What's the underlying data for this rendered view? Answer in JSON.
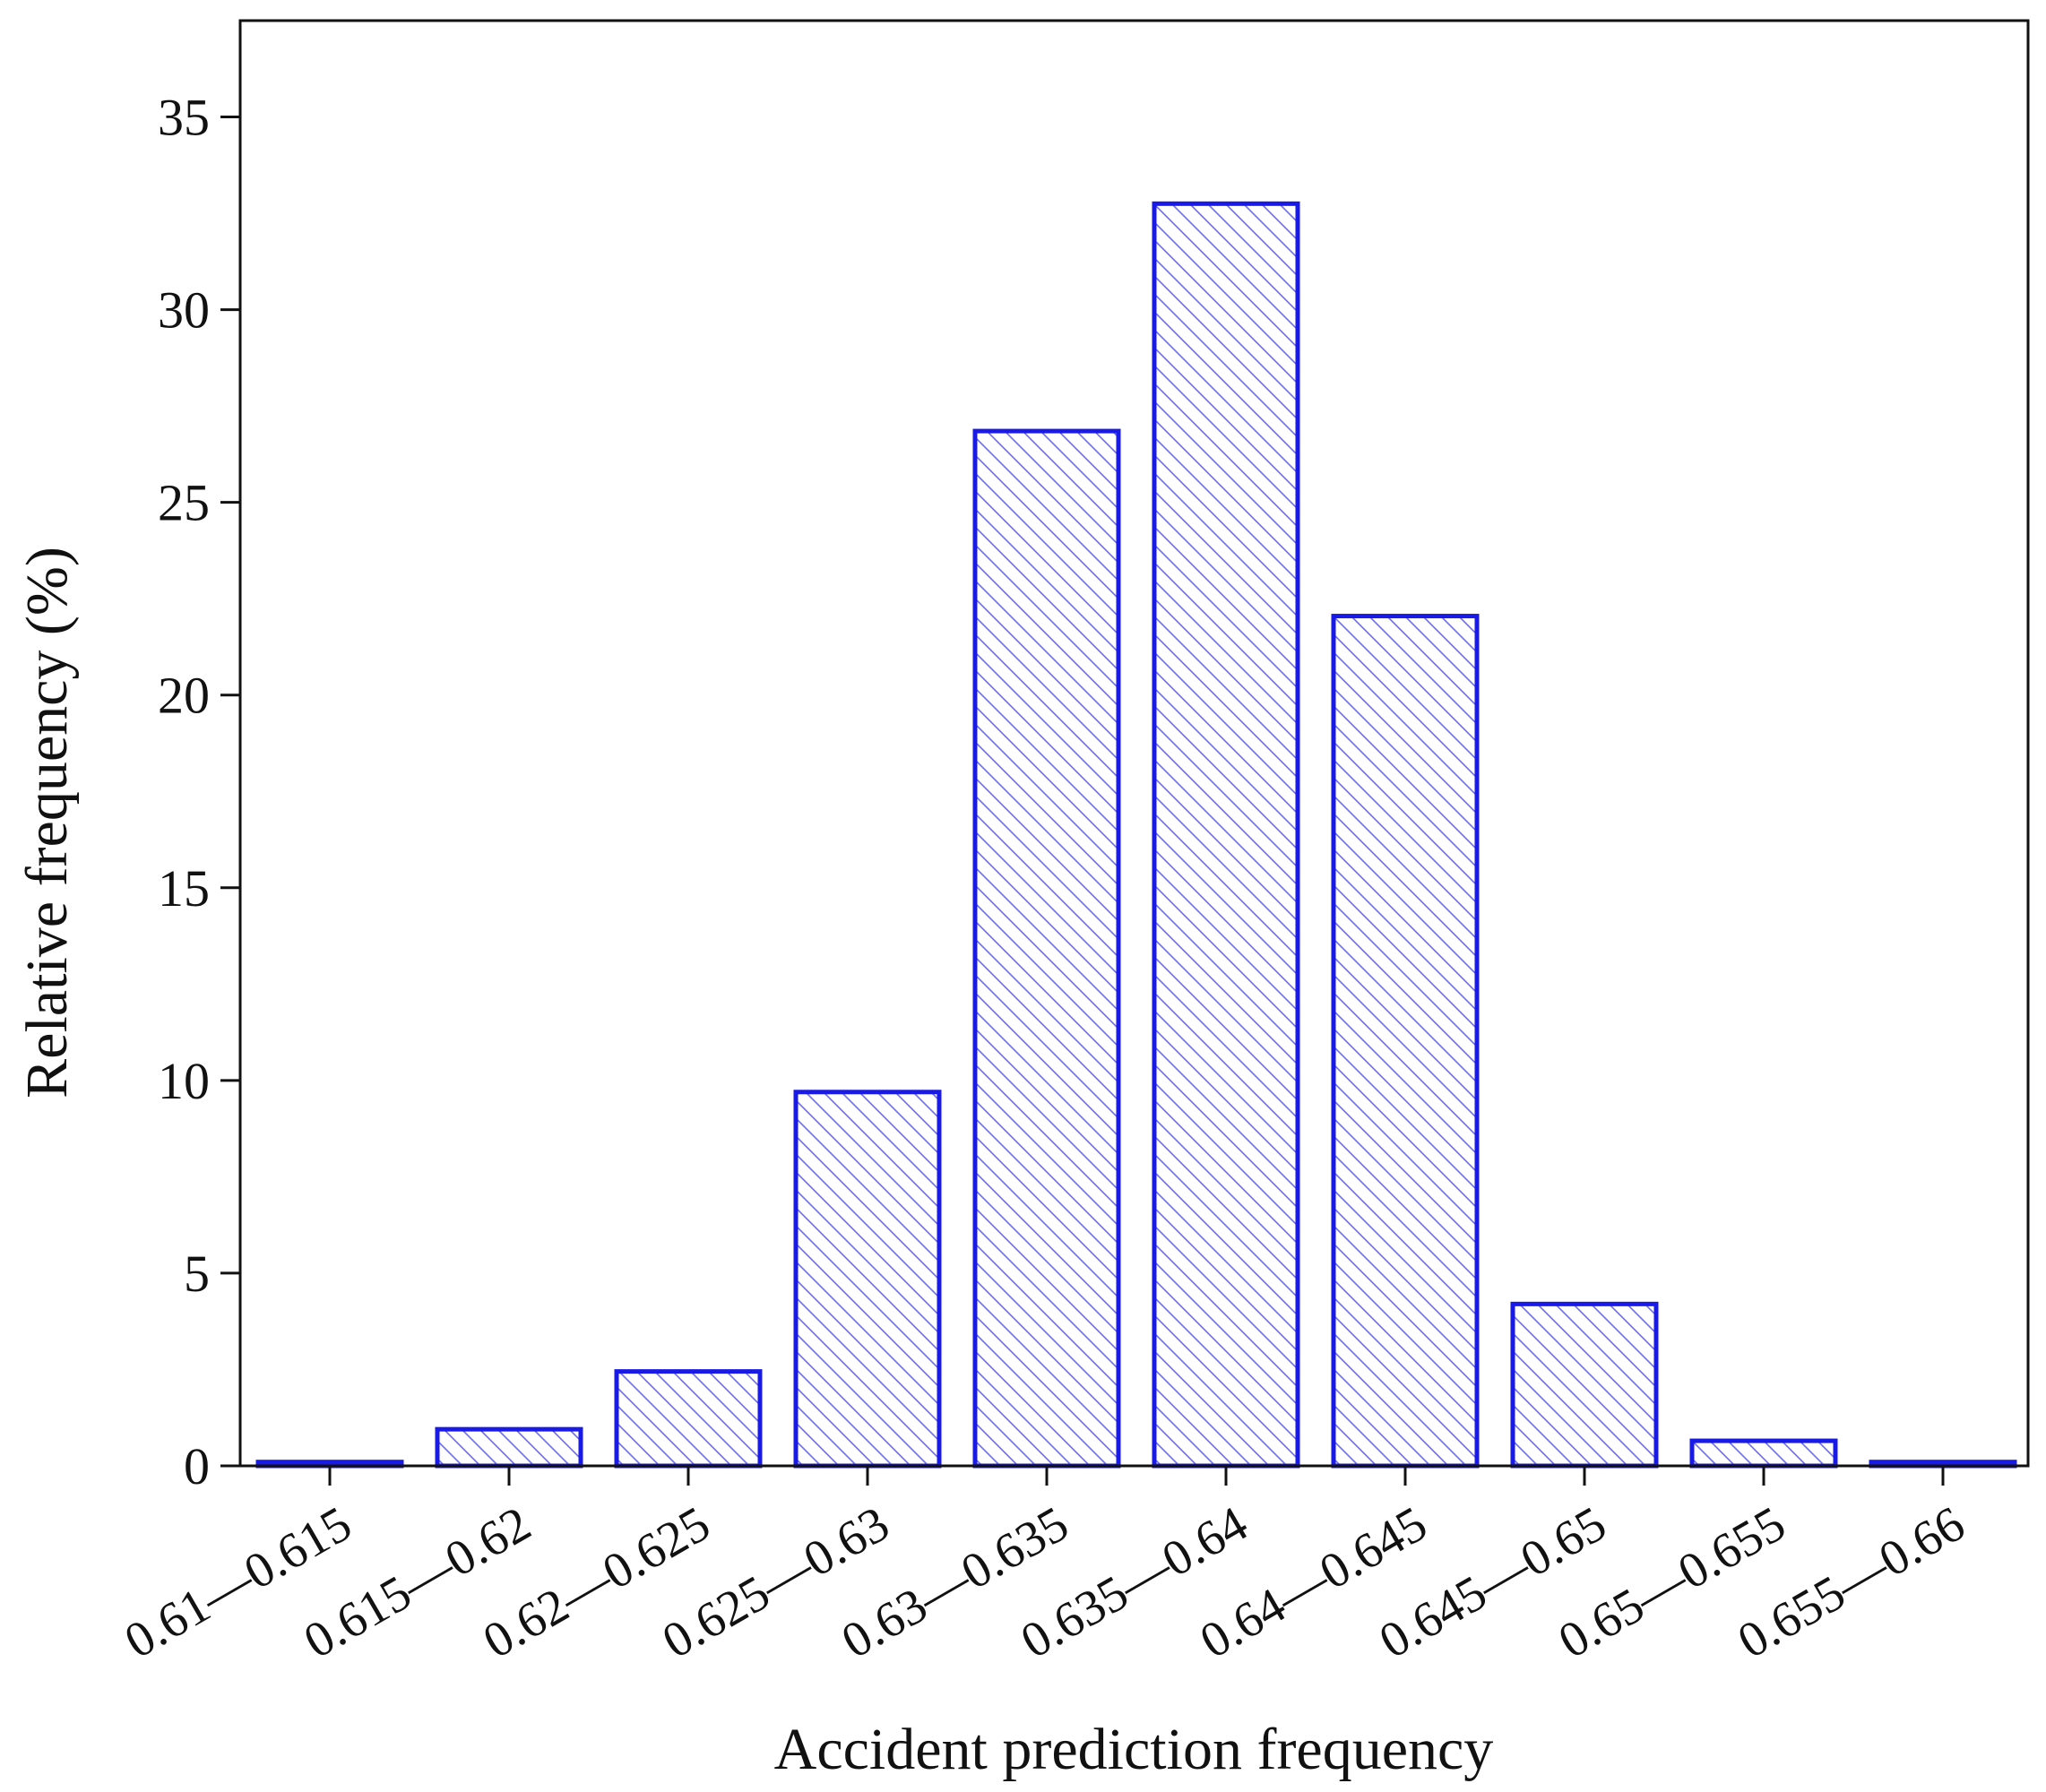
{
  "chart_data": {
    "type": "bar",
    "title": "",
    "xlabel": "Accident prediction frequency",
    "ylabel": "Relative frequency (%)",
    "categories": [
      "0.61—0.615",
      "0.615—0.62",
      "0.62—0.625",
      "0.625—0.63",
      "0.63—0.635",
      "0.635—0.64",
      "0.64—0.645",
      "0.645—0.65",
      "0.65—0.655",
      "0.655—0.66"
    ],
    "values": [
      0.1,
      0.95,
      2.45,
      9.7,
      26.85,
      32.75,
      22.05,
      4.2,
      0.65,
      0.1
    ],
    "ylim": [
      0,
      37.5
    ],
    "yticks": [
      0,
      5,
      10,
      15,
      20,
      25,
      30,
      35
    ],
    "ytick_labels": [
      "0",
      "5",
      "10",
      "15",
      "20",
      "25",
      "30",
      "35"
    ],
    "grid": false,
    "legend": "none",
    "bar_style": "hatched",
    "colors": {
      "bar_edge": "#1a1ae6",
      "hatch": "#6b6bf0",
      "bar_fill": "#ffffff",
      "axes": "#111111"
    }
  }
}
